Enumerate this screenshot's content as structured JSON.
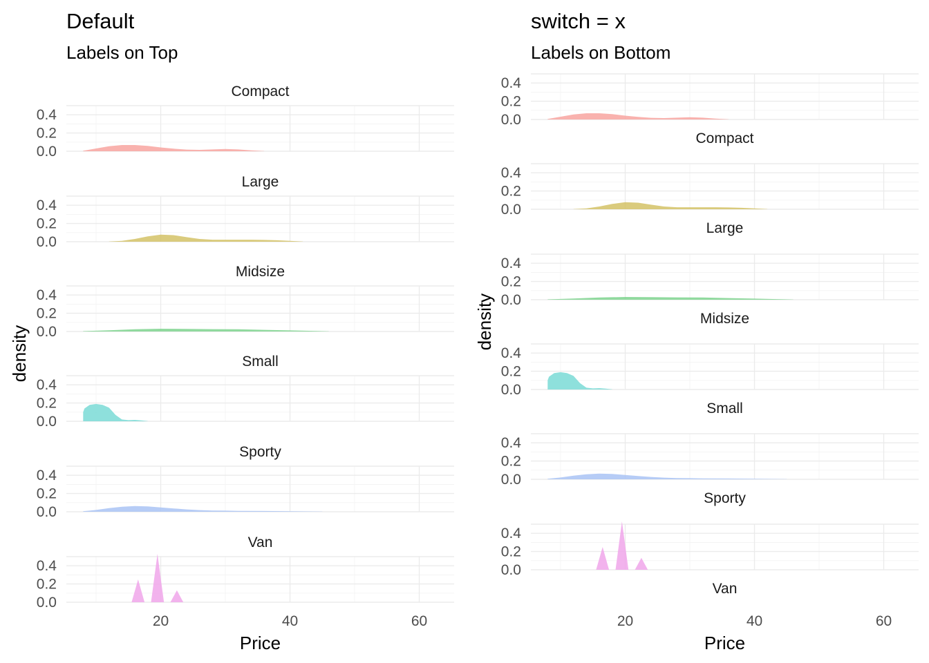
{
  "chart_data": [
    {
      "type": "area",
      "title": "Default",
      "subtitle": "Labels on Top",
      "strip_position": "top",
      "xlabel": "Price",
      "ylabel": "density",
      "xlim": [
        5.4,
        65.4
      ],
      "ylim": [
        0,
        0.5
      ],
      "xticks": [
        20,
        40,
        60
      ],
      "yticks": [
        0.0,
        0.2,
        0.4
      ],
      "ytick_labels": [
        "0.0",
        "0.2",
        "0.4"
      ],
      "grid": true,
      "panels": [
        {
          "name": "Compact",
          "color": "#F8A5A0",
          "x": [
            8,
            10,
            12,
            14,
            16,
            18,
            20,
            22,
            24,
            26,
            28,
            30,
            32,
            34,
            36
          ],
          "y": [
            0.005,
            0.03,
            0.055,
            0.068,
            0.068,
            0.058,
            0.042,
            0.028,
            0.018,
            0.015,
            0.02,
            0.025,
            0.02,
            0.01,
            0.002
          ]
        },
        {
          "name": "Large",
          "color": "#D4C266",
          "x": [
            12,
            14,
            16,
            18,
            20,
            22,
            24,
            26,
            28,
            30,
            32,
            34,
            36,
            38,
            40,
            42
          ],
          "y": [
            0.002,
            0.01,
            0.03,
            0.058,
            0.078,
            0.072,
            0.05,
            0.03,
            0.022,
            0.022,
            0.022,
            0.022,
            0.02,
            0.016,
            0.01,
            0.002
          ]
        },
        {
          "name": "Midsize",
          "color": "#7ED48E",
          "x": [
            8,
            12,
            16,
            20,
            24,
            28,
            32,
            36,
            40,
            44,
            46
          ],
          "y": [
            0.004,
            0.014,
            0.024,
            0.03,
            0.028,
            0.026,
            0.024,
            0.018,
            0.012,
            0.006,
            0.002
          ]
        },
        {
          "name": "Small",
          "color": "#7ADAD6",
          "x": [
            8,
            8.2,
            9,
            10,
            11,
            12,
            13,
            14,
            15,
            16,
            17,
            18
          ],
          "y": [
            0.1,
            0.14,
            0.18,
            0.19,
            0.18,
            0.15,
            0.07,
            0.02,
            0.012,
            0.015,
            0.01,
            0.002
          ]
        },
        {
          "name": "Sporty",
          "color": "#A9C3F5",
          "x": [
            8,
            10,
            12,
            14,
            16,
            18,
            20,
            22,
            24,
            26,
            28,
            30,
            32,
            36,
            40,
            45
          ],
          "y": [
            0.005,
            0.02,
            0.04,
            0.055,
            0.062,
            0.058,
            0.048,
            0.036,
            0.026,
            0.018,
            0.014,
            0.012,
            0.01,
            0.008,
            0.005,
            0.002
          ]
        },
        {
          "name": "Van",
          "color": "#F0A6EA",
          "x": [
            15.5,
            16.5,
            17.5,
            18.5,
            19.5,
            20.5,
            21.5,
            22.5,
            23.5
          ],
          "y": [
            0.0,
            0.25,
            0.0,
            0.0,
            0.53,
            0.0,
            0.0,
            0.13,
            0.0
          ]
        }
      ]
    },
    {
      "type": "area",
      "title": "switch = x",
      "subtitle": "Labels on Bottom",
      "strip_position": "bottom",
      "xlabel": "Price",
      "ylabel": "density",
      "xlim": [
        5.4,
        65.4
      ],
      "ylim": [
        0,
        0.5
      ],
      "xticks": [
        20,
        40,
        60
      ],
      "yticks": [
        0.0,
        0.2,
        0.4
      ],
      "ytick_labels": [
        "0.0",
        "0.2",
        "0.4"
      ],
      "grid": true,
      "panels": [
        {
          "name": "Compact",
          "color": "#F8A5A0",
          "x": [
            8,
            10,
            12,
            14,
            16,
            18,
            20,
            22,
            24,
            26,
            28,
            30,
            32,
            34,
            36
          ],
          "y": [
            0.005,
            0.03,
            0.055,
            0.068,
            0.068,
            0.058,
            0.042,
            0.028,
            0.018,
            0.015,
            0.02,
            0.025,
            0.02,
            0.01,
            0.002
          ]
        },
        {
          "name": "Large",
          "color": "#D4C266",
          "x": [
            12,
            14,
            16,
            18,
            20,
            22,
            24,
            26,
            28,
            30,
            32,
            34,
            36,
            38,
            40,
            42
          ],
          "y": [
            0.002,
            0.01,
            0.03,
            0.058,
            0.078,
            0.072,
            0.05,
            0.03,
            0.022,
            0.022,
            0.022,
            0.022,
            0.02,
            0.016,
            0.01,
            0.002
          ]
        },
        {
          "name": "Midsize",
          "color": "#7ED48E",
          "x": [
            8,
            12,
            16,
            20,
            24,
            28,
            32,
            36,
            40,
            44,
            46
          ],
          "y": [
            0.004,
            0.014,
            0.024,
            0.03,
            0.028,
            0.026,
            0.024,
            0.018,
            0.012,
            0.006,
            0.002
          ]
        },
        {
          "name": "Small",
          "color": "#7ADAD6",
          "x": [
            8,
            8.2,
            9,
            10,
            11,
            12,
            13,
            14,
            15,
            16,
            17,
            18
          ],
          "y": [
            0.1,
            0.14,
            0.18,
            0.19,
            0.18,
            0.15,
            0.07,
            0.02,
            0.012,
            0.015,
            0.01,
            0.002
          ]
        },
        {
          "name": "Sporty",
          "color": "#A9C3F5",
          "x": [
            8,
            10,
            12,
            14,
            16,
            18,
            20,
            22,
            24,
            26,
            28,
            30,
            32,
            36,
            40,
            45
          ],
          "y": [
            0.005,
            0.02,
            0.04,
            0.055,
            0.062,
            0.058,
            0.048,
            0.036,
            0.026,
            0.018,
            0.014,
            0.012,
            0.01,
            0.008,
            0.005,
            0.002
          ]
        },
        {
          "name": "Van",
          "color": "#F0A6EA",
          "x": [
            15.5,
            16.5,
            17.5,
            18.5,
            19.5,
            20.5,
            21.5,
            22.5,
            23.5
          ],
          "y": [
            0.0,
            0.25,
            0.0,
            0.0,
            0.53,
            0.0,
            0.0,
            0.13,
            0.0
          ]
        }
      ]
    }
  ]
}
